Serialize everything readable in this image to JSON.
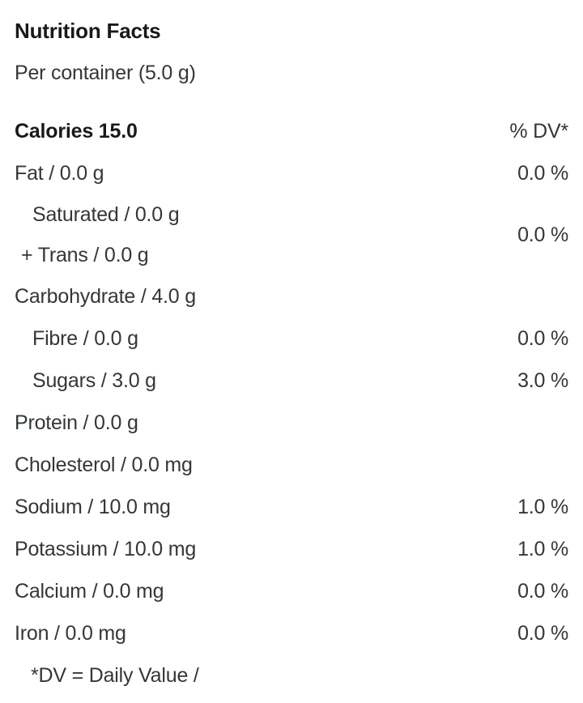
{
  "header": {
    "title": "Nutrition Facts",
    "serving": "Per container (5.0 g)",
    "calories": "Calories 15.0",
    "dv_header": "% DV*"
  },
  "rows": [
    {
      "lines": [
        {
          "text": "Fat / 0.0 g",
          "indent": "base"
        }
      ],
      "value": "0.0 %"
    },
    {
      "lines": [
        {
          "text": "Saturated / 0.0 g",
          "indent": "sub"
        },
        {
          "text": "+ Trans / 0.0 g",
          "indent": "plus"
        }
      ],
      "value": "0.0 %"
    },
    {
      "lines": [
        {
          "text": "Carbohydrate / 4.0 g",
          "indent": "base"
        }
      ],
      "value": ""
    },
    {
      "lines": [
        {
          "text": "Fibre / 0.0 g",
          "indent": "sub"
        }
      ],
      "value": "0.0 %"
    },
    {
      "lines": [
        {
          "text": "Sugars / 3.0 g",
          "indent": "sub"
        }
      ],
      "value": "3.0 %"
    },
    {
      "lines": [
        {
          "text": "Protein / 0.0 g",
          "indent": "base"
        }
      ],
      "value": ""
    },
    {
      "lines": [
        {
          "text": "Cholesterol / 0.0 mg",
          "indent": "base"
        }
      ],
      "value": ""
    },
    {
      "lines": [
        {
          "text": "Sodium / 10.0 mg",
          "indent": "base"
        }
      ],
      "value": "1.0 %"
    },
    {
      "lines": [
        {
          "text": "Potassium / 10.0 mg",
          "indent": "base"
        }
      ],
      "value": "1.0 %"
    },
    {
      "lines": [
        {
          "text": "Calcium / 0.0 mg",
          "indent": "base"
        }
      ],
      "value": "0.0 %"
    },
    {
      "lines": [
        {
          "text": "Iron / 0.0 mg",
          "indent": "base"
        }
      ],
      "value": "0.0 %"
    }
  ],
  "footnote": "*DV = Daily Value /",
  "colors": {
    "background": "#ffffff",
    "text": "#33373a",
    "heading": "#17191c"
  }
}
